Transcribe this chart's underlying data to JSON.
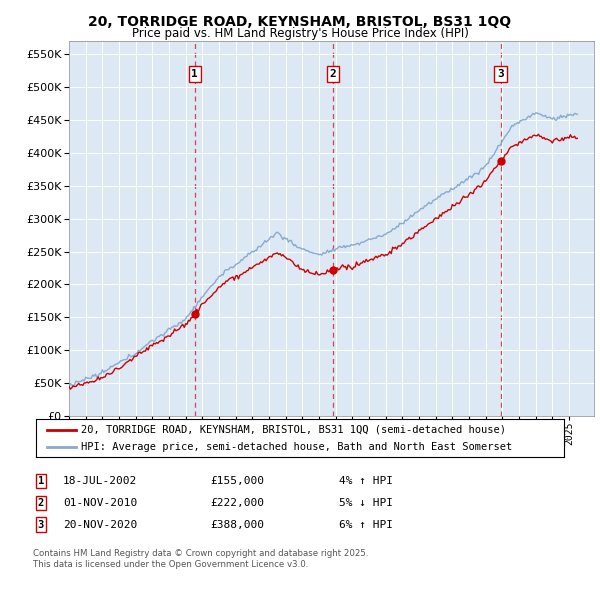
{
  "title_line1": "20, TORRIDGE ROAD, KEYNSHAM, BRISTOL, BS31 1QQ",
  "title_line2": "Price paid vs. HM Land Registry's House Price Index (HPI)",
  "plot_bg_color": "#dce9f5",
  "yticks": [
    0,
    50000,
    100000,
    150000,
    200000,
    250000,
    300000,
    350000,
    400000,
    450000,
    500000,
    550000
  ],
  "xmin": 1995.0,
  "xmax": 2026.5,
  "ymin": 0,
  "ymax": 570000,
  "transactions": [
    {
      "date": 2002.54,
      "price": 155000,
      "label": "1",
      "display": "18-JUL-2002",
      "amount": "£155,000",
      "pct": "4%",
      "dir": "↑"
    },
    {
      "date": 2010.84,
      "price": 222000,
      "label": "2",
      "display": "01-NOV-2010",
      "amount": "£222,000",
      "pct": "5%",
      "dir": "↓"
    },
    {
      "date": 2020.89,
      "price": 388000,
      "label": "3",
      "display": "20-NOV-2020",
      "amount": "£388,000",
      "pct": "6%",
      "dir": "↑"
    }
  ],
  "legend_line1": "20, TORRIDGE ROAD, KEYNSHAM, BRISTOL, BS31 1QQ (semi-detached house)",
  "legend_line2": "HPI: Average price, semi-detached house, Bath and North East Somerset",
  "footer_line1": "Contains HM Land Registry data © Crown copyright and database right 2025.",
  "footer_line2": "This data is licensed under the Open Government Licence v3.0.",
  "line_color_red": "#cc0000",
  "line_color_blue": "#88aacc",
  "vline_color": "#cc0000",
  "grid_color": "#c8d8e8"
}
